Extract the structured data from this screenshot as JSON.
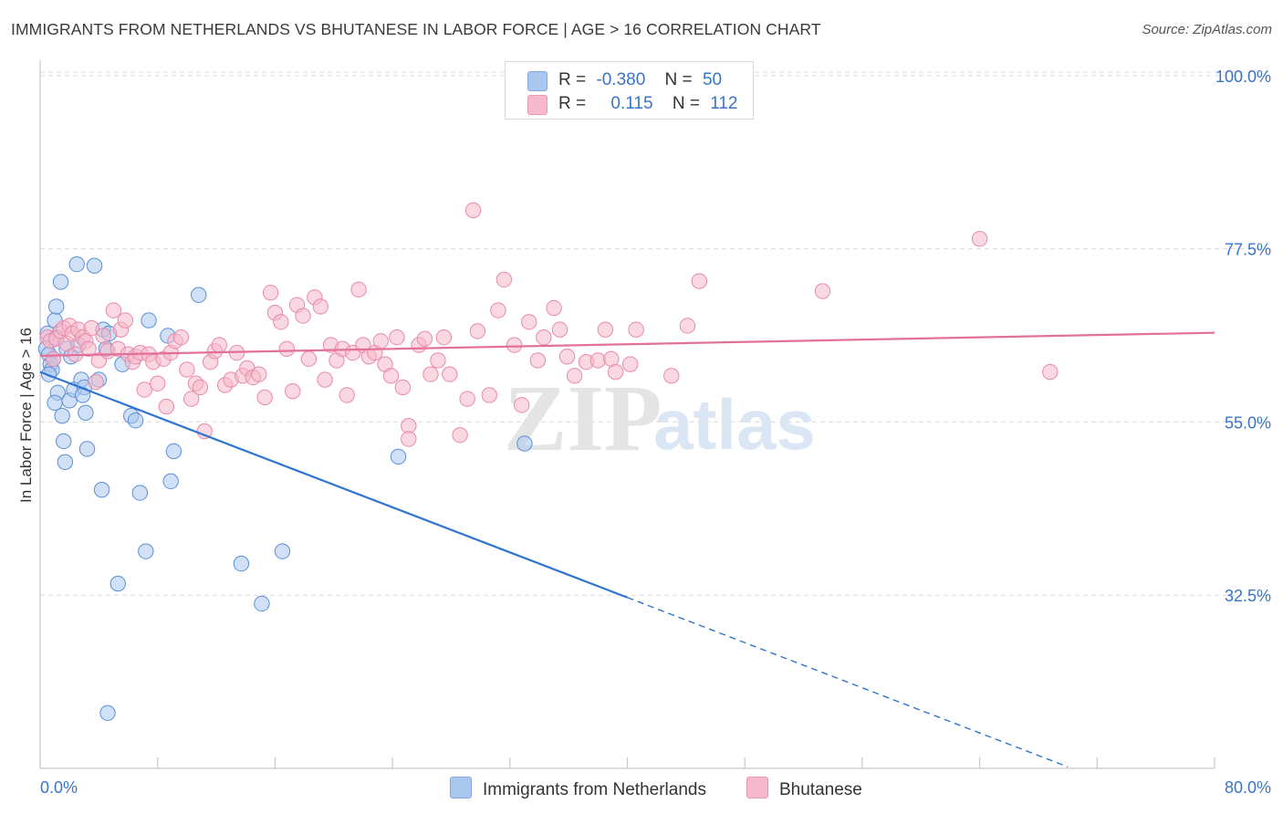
{
  "header": {
    "title": "IMMIGRANTS FROM NETHERLANDS VS BHUTANESE IN LABOR FORCE | AGE > 16 CORRELATION CHART",
    "source": "Source: ZipAtlas.com"
  },
  "watermark": {
    "zip": "ZIP",
    "atlas": "atlas"
  },
  "legend": {
    "rows": [
      {
        "r_label": "R =",
        "r_value": "-0.380",
        "n_label": "N =",
        "n_value": "50",
        "color": "#a9c7ee"
      },
      {
        "r_label": "R =",
        "r_value": "0.115",
        "n_label": "N =",
        "n_value": "112",
        "color": "#f6b8cb"
      }
    ]
  },
  "bottom_legend": {
    "items": [
      {
        "label": "Immigrants from Netherlands",
        "color": "#a9c7ee"
      },
      {
        "label": "Bhutanese",
        "color": "#f6b8cb"
      }
    ]
  },
  "chart_data": {
    "type": "scatter",
    "title": "IMMIGRANTS FROM NETHERLANDS VS BHUTANESE IN LABOR FORCE | AGE > 16 CORRELATION CHART",
    "xlabel": "",
    "ylabel": "In Labor Force | Age > 16",
    "xlim": [
      0,
      80
    ],
    "ylim": [
      10,
      102
    ],
    "x_tick_labels": [
      "0.0%",
      "80.0%"
    ],
    "y_ticks": [
      32.5,
      55.0,
      77.5,
      100.0
    ],
    "y_tick_labels": [
      "32.5%",
      "55.0%",
      "77.5%",
      "100.0%"
    ],
    "grid": true,
    "legend_position": "top-center",
    "series": [
      {
        "name": "Immigrants from Netherlands",
        "color": "#a9c7ee",
        "stroke": "#5a8fd6",
        "trend": {
          "color": "#2f74d0",
          "x_solid": [
            0,
            40
          ],
          "y_solid": [
            61.5,
            32.2
          ],
          "x_dashed": [
            40,
            70
          ],
          "y_dashed": [
            32.2,
            10.2
          ]
        },
        "points": [
          [
            0.4,
            64.5
          ],
          [
            0.5,
            66.5
          ],
          [
            0.6,
            63.8
          ],
          [
            0.7,
            62.5
          ],
          [
            0.8,
            61.8
          ],
          [
            0.9,
            63.2
          ],
          [
            1.0,
            68.2
          ],
          [
            1.1,
            66.0
          ],
          [
            1.1,
            70.0
          ],
          [
            1.2,
            58.8
          ],
          [
            1.0,
            57.5
          ],
          [
            1.4,
            73.2
          ],
          [
            1.5,
            55.8
          ],
          [
            1.6,
            52.5
          ],
          [
            1.7,
            49.8
          ],
          [
            1.8,
            64.5
          ],
          [
            2.0,
            57.8
          ],
          [
            2.1,
            63.5
          ],
          [
            2.3,
            59.2
          ],
          [
            2.5,
            75.5
          ],
          [
            2.6,
            65.0
          ],
          [
            2.8,
            60.5
          ],
          [
            3.0,
            59.5
          ],
          [
            3.1,
            56.2
          ],
          [
            3.2,
            51.5
          ],
          [
            3.7,
            75.3
          ],
          [
            4.0,
            60.5
          ],
          [
            4.2,
            46.2
          ],
          [
            4.3,
            67.0
          ],
          [
            4.5,
            64.5
          ],
          [
            4.7,
            66.5
          ],
          [
            5.3,
            34.0
          ],
          [
            5.6,
            62.5
          ],
          [
            6.2,
            55.8
          ],
          [
            6.5,
            55.2
          ],
          [
            6.8,
            45.8
          ],
          [
            7.2,
            38.2
          ],
          [
            7.4,
            68.2
          ],
          [
            8.7,
            66.2
          ],
          [
            8.9,
            47.3
          ],
          [
            9.1,
            51.2
          ],
          [
            10.8,
            71.5
          ],
          [
            13.7,
            36.6
          ],
          [
            15.1,
            31.4
          ],
          [
            16.5,
            38.2
          ],
          [
            24.4,
            50.5
          ],
          [
            33.0,
            52.2
          ],
          [
            4.6,
            17.2
          ],
          [
            0.6,
            61.2
          ],
          [
            2.9,
            58.5
          ]
        ]
      },
      {
        "name": "Bhutanese",
        "color": "#f6b8cb",
        "stroke": "#e98aa8",
        "trend": {
          "color": "#e2709a",
          "x_solid": [
            0,
            80
          ],
          "y_solid": [
            63.6,
            66.6
          ]
        },
        "points": [
          [
            0.5,
            66.0
          ],
          [
            0.7,
            65.5
          ],
          [
            0.9,
            63.2
          ],
          [
            1.1,
            65.8
          ],
          [
            1.4,
            66.8
          ],
          [
            1.6,
            67.2
          ],
          [
            1.8,
            65.2
          ],
          [
            2.0,
            67.5
          ],
          [
            2.2,
            66.5
          ],
          [
            2.4,
            63.8
          ],
          [
            2.6,
            67.0
          ],
          [
            2.9,
            66.0
          ],
          [
            3.1,
            65.5
          ],
          [
            3.3,
            64.5
          ],
          [
            3.5,
            67.2
          ],
          [
            3.8,
            60.2
          ],
          [
            4.0,
            63.0
          ],
          [
            4.3,
            66.2
          ],
          [
            4.6,
            64.2
          ],
          [
            5.0,
            69.5
          ],
          [
            5.3,
            64.5
          ],
          [
            5.5,
            67.0
          ],
          [
            5.8,
            68.2
          ],
          [
            6.0,
            63.8
          ],
          [
            6.3,
            62.8
          ],
          [
            6.5,
            63.5
          ],
          [
            6.8,
            64.0
          ],
          [
            7.1,
            59.2
          ],
          [
            7.4,
            63.8
          ],
          [
            7.7,
            62.8
          ],
          [
            8.0,
            60.0
          ],
          [
            8.4,
            63.2
          ],
          [
            8.6,
            57.0
          ],
          [
            8.9,
            64.0
          ],
          [
            9.2,
            65.5
          ],
          [
            9.6,
            66.0
          ],
          [
            10.0,
            61.8
          ],
          [
            10.3,
            58.0
          ],
          [
            10.6,
            60.0
          ],
          [
            10.9,
            59.5
          ],
          [
            11.2,
            53.8
          ],
          [
            11.6,
            62.8
          ],
          [
            11.9,
            64.2
          ],
          [
            12.2,
            65.0
          ],
          [
            12.6,
            59.8
          ],
          [
            13.0,
            60.5
          ],
          [
            13.4,
            64.0
          ],
          [
            13.8,
            61.0
          ],
          [
            14.1,
            62.0
          ],
          [
            14.5,
            60.8
          ],
          [
            14.9,
            61.2
          ],
          [
            15.3,
            58.2
          ],
          [
            15.7,
            71.8
          ],
          [
            16.0,
            69.2
          ],
          [
            16.4,
            68.0
          ],
          [
            16.8,
            64.5
          ],
          [
            17.2,
            59.0
          ],
          [
            17.5,
            70.2
          ],
          [
            17.9,
            68.8
          ],
          [
            18.3,
            63.2
          ],
          [
            18.7,
            71.2
          ],
          [
            19.1,
            70.0
          ],
          [
            19.4,
            60.5
          ],
          [
            19.8,
            65.0
          ],
          [
            20.2,
            63.0
          ],
          [
            20.6,
            64.5
          ],
          [
            20.9,
            58.5
          ],
          [
            21.3,
            64.0
          ],
          [
            21.7,
            72.2
          ],
          [
            22.0,
            65.0
          ],
          [
            22.4,
            63.5
          ],
          [
            22.8,
            64.0
          ],
          [
            23.2,
            65.5
          ],
          [
            23.5,
            62.5
          ],
          [
            23.9,
            61.0
          ],
          [
            24.3,
            66.0
          ],
          [
            24.7,
            59.5
          ],
          [
            25.1,
            54.5
          ],
          [
            25.1,
            52.8
          ],
          [
            25.8,
            65.0
          ],
          [
            26.2,
            65.8
          ],
          [
            26.6,
            61.2
          ],
          [
            27.1,
            63.0
          ],
          [
            27.5,
            66.0
          ],
          [
            27.9,
            61.2
          ],
          [
            28.6,
            53.3
          ],
          [
            29.1,
            58.0
          ],
          [
            29.5,
            82.5
          ],
          [
            29.8,
            66.8
          ],
          [
            30.6,
            58.5
          ],
          [
            31.2,
            69.5
          ],
          [
            31.6,
            73.5
          ],
          [
            32.3,
            65.0
          ],
          [
            32.8,
            57.2
          ],
          [
            33.3,
            68.0
          ],
          [
            33.9,
            63.0
          ],
          [
            34.3,
            66.0
          ],
          [
            35.0,
            69.8
          ],
          [
            35.4,
            67.0
          ],
          [
            35.9,
            63.5
          ],
          [
            36.4,
            61.0
          ],
          [
            37.2,
            62.8
          ],
          [
            38.0,
            63.0
          ],
          [
            38.5,
            67.0
          ],
          [
            38.9,
            63.2
          ],
          [
            39.2,
            61.5
          ],
          [
            40.2,
            62.5
          ],
          [
            40.6,
            67.0
          ],
          [
            43.0,
            61.0
          ],
          [
            44.1,
            67.5
          ],
          [
            44.9,
            73.3
          ],
          [
            53.3,
            72.0
          ],
          [
            64.0,
            78.8
          ],
          [
            68.8,
            61.5
          ]
        ]
      }
    ]
  }
}
